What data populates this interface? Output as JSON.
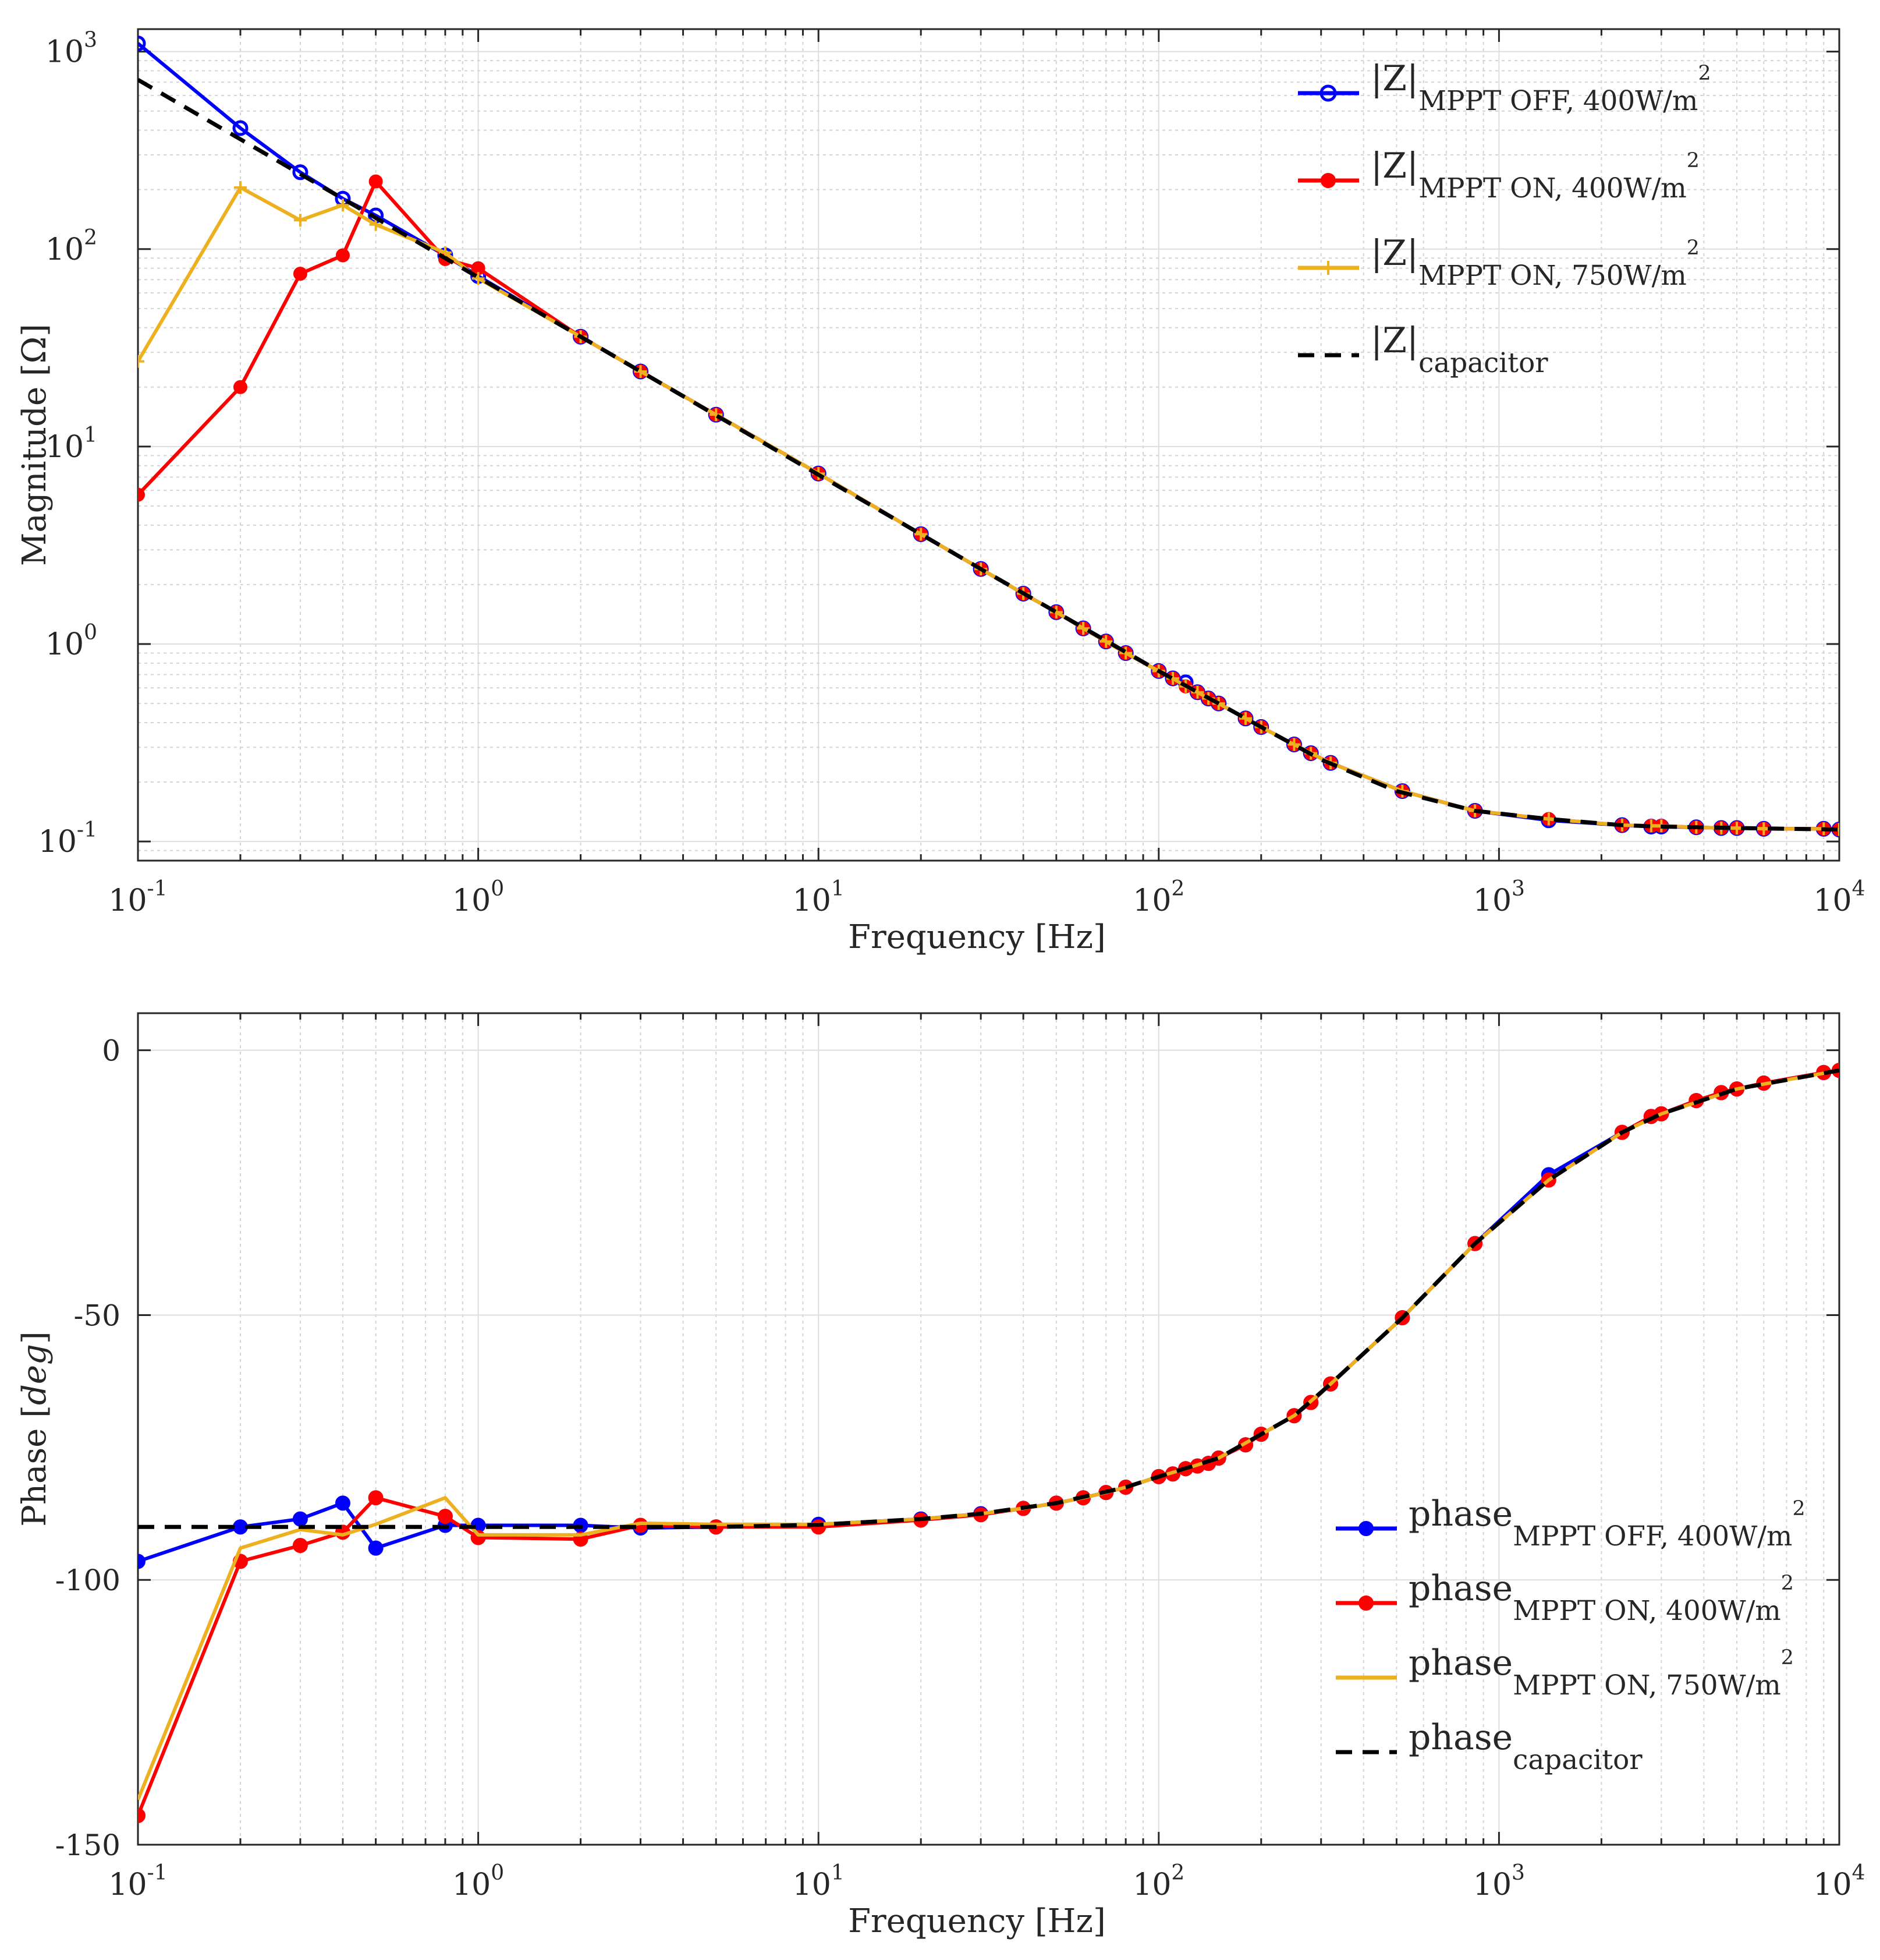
{
  "chart_data": [
    {
      "type": "line",
      "title": "",
      "xlabel": "Frequency [Hz]",
      "ylabel": "Magnitude [Ω]",
      "xscale": "log",
      "yscale": "log",
      "xlim": [
        0.1,
        10000
      ],
      "ylim": [
        0.08,
        1300
      ],
      "grid": true,
      "legend_position": "top-right",
      "x_ticks": [
        0.1,
        1,
        10,
        100,
        1000,
        10000
      ],
      "x_tick_labels": [
        {
          "base": "10",
          "exp": "-1"
        },
        {
          "base": "10",
          "exp": "0"
        },
        {
          "base": "10",
          "exp": "1"
        },
        {
          "base": "10",
          "exp": "2"
        },
        {
          "base": "10",
          "exp": "3"
        },
        {
          "base": "10",
          "exp": "4"
        }
      ],
      "y_ticks": [
        0.1,
        1,
        10,
        100,
        1000
      ],
      "y_tick_labels": [
        {
          "base": "10",
          "exp": "-1"
        },
        {
          "base": "10",
          "exp": "0"
        },
        {
          "base": "10",
          "exp": "1"
        },
        {
          "base": "10",
          "exp": "2"
        },
        {
          "base": "10",
          "exp": "3"
        }
      ],
      "series": [
        {
          "name": "|Z| MPPT OFF, 400W/m²",
          "legend": {
            "main": "|Z|",
            "sub": "MPPT OFF, 400W/m",
            "sup": "2"
          },
          "color": "#0000ff",
          "marker": "circle-open",
          "dashed": false,
          "x": [
            0.1,
            0.2,
            0.3,
            0.4,
            0.5,
            0.8,
            1,
            2,
            3,
            5,
            10,
            20,
            30,
            40,
            50,
            60,
            70,
            80,
            100,
            110,
            120,
            130,
            140,
            150,
            180,
            200,
            250,
            280,
            320,
            520,
            850,
            1400,
            2300,
            2800,
            3000,
            3800,
            4500,
            5000,
            6000,
            9000,
            10000
          ],
          "y": [
            1100,
            410,
            245,
            180,
            148,
            93,
            73,
            36,
            24,
            14.5,
            7.3,
            3.6,
            2.4,
            1.8,
            1.45,
            1.2,
            1.03,
            0.9,
            0.73,
            0.67,
            0.64,
            0.57,
            0.53,
            0.5,
            0.42,
            0.38,
            0.31,
            0.28,
            0.25,
            0.18,
            0.143,
            0.128,
            0.121,
            0.119,
            0.119,
            0.118,
            0.117,
            0.117,
            0.116,
            0.116,
            0.115
          ]
        },
        {
          "name": "|Z| MPPT ON, 400W/m²",
          "legend": {
            "main": "|Z|",
            "sub": "MPPT ON, 400W/m",
            "sup": "2"
          },
          "color": "#ff0000",
          "marker": "circle-filled",
          "dashed": false,
          "x": [
            0.1,
            0.2,
            0.3,
            0.4,
            0.5,
            0.8,
            1,
            2,
            3,
            5,
            10,
            20,
            30,
            40,
            50,
            60,
            70,
            80,
            100,
            110,
            120,
            130,
            140,
            150,
            180,
            200,
            250,
            280,
            320,
            520,
            850,
            1400,
            2300,
            2800,
            3000,
            3800,
            4500,
            5000,
            6000,
            9000,
            10000
          ],
          "y": [
            5.7,
            20,
            75,
            93,
            220,
            89,
            80,
            36,
            24,
            14.5,
            7.3,
            3.6,
            2.4,
            1.8,
            1.45,
            1.2,
            1.03,
            0.9,
            0.73,
            0.67,
            0.61,
            0.57,
            0.53,
            0.5,
            0.42,
            0.38,
            0.31,
            0.28,
            0.25,
            0.18,
            0.143,
            0.13,
            0.121,
            0.12,
            0.12,
            0.118,
            0.117,
            0.117,
            0.116,
            0.116,
            0.115
          ]
        },
        {
          "name": "|Z| MPPT ON, 750W/m²",
          "legend": {
            "main": "|Z|",
            "sub": "MPPT ON, 750W/m",
            "sup": "2"
          },
          "color": "#edb120",
          "marker": "plus",
          "dashed": false,
          "x": [
            0.1,
            0.2,
            0.3,
            0.4,
            0.5,
            0.8,
            1,
            2,
            3,
            5,
            10,
            20,
            30,
            40,
            50,
            60,
            70,
            80,
            100,
            110,
            120,
            130,
            140,
            150,
            180,
            200,
            250,
            280,
            320,
            520,
            850,
            1400,
            2300,
            2800,
            3000,
            3800,
            4500,
            5000,
            6000,
            9000,
            10000
          ],
          "y": [
            27,
            205,
            140,
            167,
            133,
            96,
            71,
            36,
            24,
            14.5,
            7.3,
            3.6,
            2.4,
            1.8,
            1.45,
            1.2,
            1.03,
            0.9,
            0.73,
            0.67,
            0.61,
            0.57,
            0.53,
            0.5,
            0.42,
            0.38,
            0.31,
            0.28,
            0.25,
            0.18,
            0.143,
            0.13,
            0.121,
            0.12,
            0.12,
            0.118,
            0.117,
            0.117,
            0.116,
            0.116,
            0.115
          ]
        },
        {
          "name": "|Z| capacitor",
          "legend": {
            "main": "|Z|",
            "sub": "capacitor",
            "sup": ""
          },
          "color": "#000000",
          "marker": "none",
          "dashed": true,
          "x": [
            0.1,
            0.2,
            0.3,
            0.5,
            0.8,
            1,
            2,
            3,
            5,
            10,
            20,
            30,
            50,
            100,
            150,
            200,
            300,
            500,
            850,
            1400,
            2300,
            3000,
            5000,
            10000
          ],
          "y": [
            720,
            360,
            240,
            144,
            90,
            72,
            36,
            24,
            14.4,
            7.2,
            3.6,
            2.4,
            1.45,
            0.73,
            0.5,
            0.38,
            0.26,
            0.18,
            0.143,
            0.13,
            0.121,
            0.119,
            0.117,
            0.115
          ]
        }
      ]
    },
    {
      "type": "line",
      "title": "",
      "xlabel": "Frequency [Hz]",
      "ylabel": "Phase [deg]",
      "ylabel_plain": "Phase [",
      "ylabel_italic": "deg",
      "ylabel_close": "]",
      "xscale": "log",
      "yscale": "linear",
      "xlim": [
        0.1,
        10000
      ],
      "ylim": [
        -150,
        7
      ],
      "grid": true,
      "legend_position": "bottom-right",
      "x_ticks": [
        0.1,
        1,
        10,
        100,
        1000,
        10000
      ],
      "x_tick_labels": [
        {
          "base": "10",
          "exp": "-1"
        },
        {
          "base": "10",
          "exp": "0"
        },
        {
          "base": "10",
          "exp": "1"
        },
        {
          "base": "10",
          "exp": "2"
        },
        {
          "base": "10",
          "exp": "3"
        },
        {
          "base": "10",
          "exp": "4"
        }
      ],
      "y_ticks": [
        0,
        -50,
        -100,
        -150
      ],
      "y_tick_labels": [
        "0",
        "-50",
        "-100",
        "-150"
      ],
      "series": [
        {
          "name": "phase MPPT OFF, 400W/m²",
          "legend": {
            "main": "phase",
            "sub": "MPPT OFF, 400W/m",
            "sup": "2"
          },
          "color": "#0000ff",
          "marker": "circle-filled",
          "dashed": false,
          "x": [
            0.1,
            0.2,
            0.3,
            0.4,
            0.5,
            0.8,
            1,
            2,
            3,
            5,
            10,
            20,
            30,
            40,
            50,
            60,
            70,
            80,
            100,
            110,
            120,
            130,
            140,
            150,
            180,
            200,
            250,
            280,
            320,
            520,
            850,
            1400,
            2300,
            2800,
            3000,
            3800,
            4500,
            5000,
            6000,
            9000,
            10000
          ],
          "y": [
            -96.5,
            -90,
            -88.5,
            -85.5,
            -94,
            -89.7,
            -89.7,
            -89.7,
            -90.2,
            -90,
            -89.5,
            -88.5,
            -87.5,
            -86.5,
            -85.5,
            -84.5,
            -83.5,
            -82.5,
            -80.5,
            -80,
            -79,
            -78.5,
            -78,
            -77,
            -74.5,
            -72.5,
            -69,
            -66.5,
            -63,
            -50.5,
            -36.5,
            -23.5,
            -15.5,
            -12.5,
            -12,
            -9.5,
            -8,
            -7.3,
            -6.2,
            -4.2,
            -3.8
          ]
        },
        {
          "name": "phase MPPT ON, 400W/m²",
          "legend": {
            "main": "phase",
            "sub": "MPPT ON, 400W/m",
            "sup": "2"
          },
          "color": "#ff0000",
          "marker": "circle-filled",
          "dashed": false,
          "x": [
            0.1,
            0.2,
            0.3,
            0.4,
            0.5,
            0.8,
            1,
            2,
            3,
            5,
            10,
            20,
            30,
            40,
            50,
            60,
            70,
            80,
            100,
            110,
            120,
            130,
            140,
            150,
            180,
            200,
            250,
            280,
            320,
            520,
            850,
            1400,
            2300,
            2800,
            3000,
            3800,
            4500,
            5000,
            6000,
            9000,
            10000
          ],
          "y": [
            -144.5,
            -96.5,
            -93.5,
            -91,
            -84.5,
            -88,
            -92,
            -92.3,
            -89.7,
            -90,
            -90,
            -88.7,
            -87.7,
            -86.5,
            -85.5,
            -84.5,
            -83.5,
            -82.5,
            -80.5,
            -80,
            -79,
            -78.5,
            -78,
            -77,
            -74.5,
            -72.5,
            -69,
            -66.5,
            -63,
            -50.5,
            -36.5,
            -24.5,
            -15.5,
            -12.5,
            -12,
            -9.5,
            -8,
            -7.3,
            -6.2,
            -4.2,
            -3.8
          ]
        },
        {
          "name": "phase MPPT ON, 750W/m²",
          "legend": {
            "main": "phase",
            "sub": "MPPT ON, 750W/m",
            "sup": "2"
          },
          "color": "#edb120",
          "marker": "none",
          "dashed": false,
          "x": [
            0.1,
            0.2,
            0.3,
            0.4,
            0.5,
            0.8,
            1,
            2,
            3,
            5,
            10,
            20,
            30,
            40,
            50,
            60,
            70,
            80,
            100,
            120,
            150,
            200,
            250,
            320,
            520,
            850,
            1400,
            2300,
            3000,
            5000,
            10000
          ],
          "y": [
            -141.5,
            -94,
            -90.5,
            -91.5,
            -89.5,
            -84.5,
            -91.5,
            -91.5,
            -89.3,
            -89.5,
            -89.5,
            -88.5,
            -87.5,
            -86.5,
            -85.5,
            -84.5,
            -83.5,
            -82.5,
            -80.5,
            -79,
            -77,
            -72.5,
            -69,
            -63,
            -50.5,
            -36.5,
            -24.5,
            -15.5,
            -12,
            -7.3,
            -3.8
          ]
        },
        {
          "name": "phase capacitor",
          "legend": {
            "main": "phase",
            "sub": "capacitor",
            "sup": ""
          },
          "color": "#000000",
          "marker": "none",
          "dashed": true,
          "x": [
            0.1,
            1,
            5,
            10,
            20,
            30,
            50,
            80,
            100,
            150,
            200,
            250,
            320,
            520,
            850,
            1400,
            2300,
            3000,
            5000,
            10000
          ],
          "y": [
            -90,
            -90,
            -90,
            -89.6,
            -88.5,
            -87.5,
            -85.5,
            -82.5,
            -80.5,
            -77,
            -72.5,
            -69,
            -63,
            -50.5,
            -36.5,
            -24.5,
            -15.5,
            -12,
            -7.3,
            -3.8
          ]
        }
      ]
    }
  ]
}
